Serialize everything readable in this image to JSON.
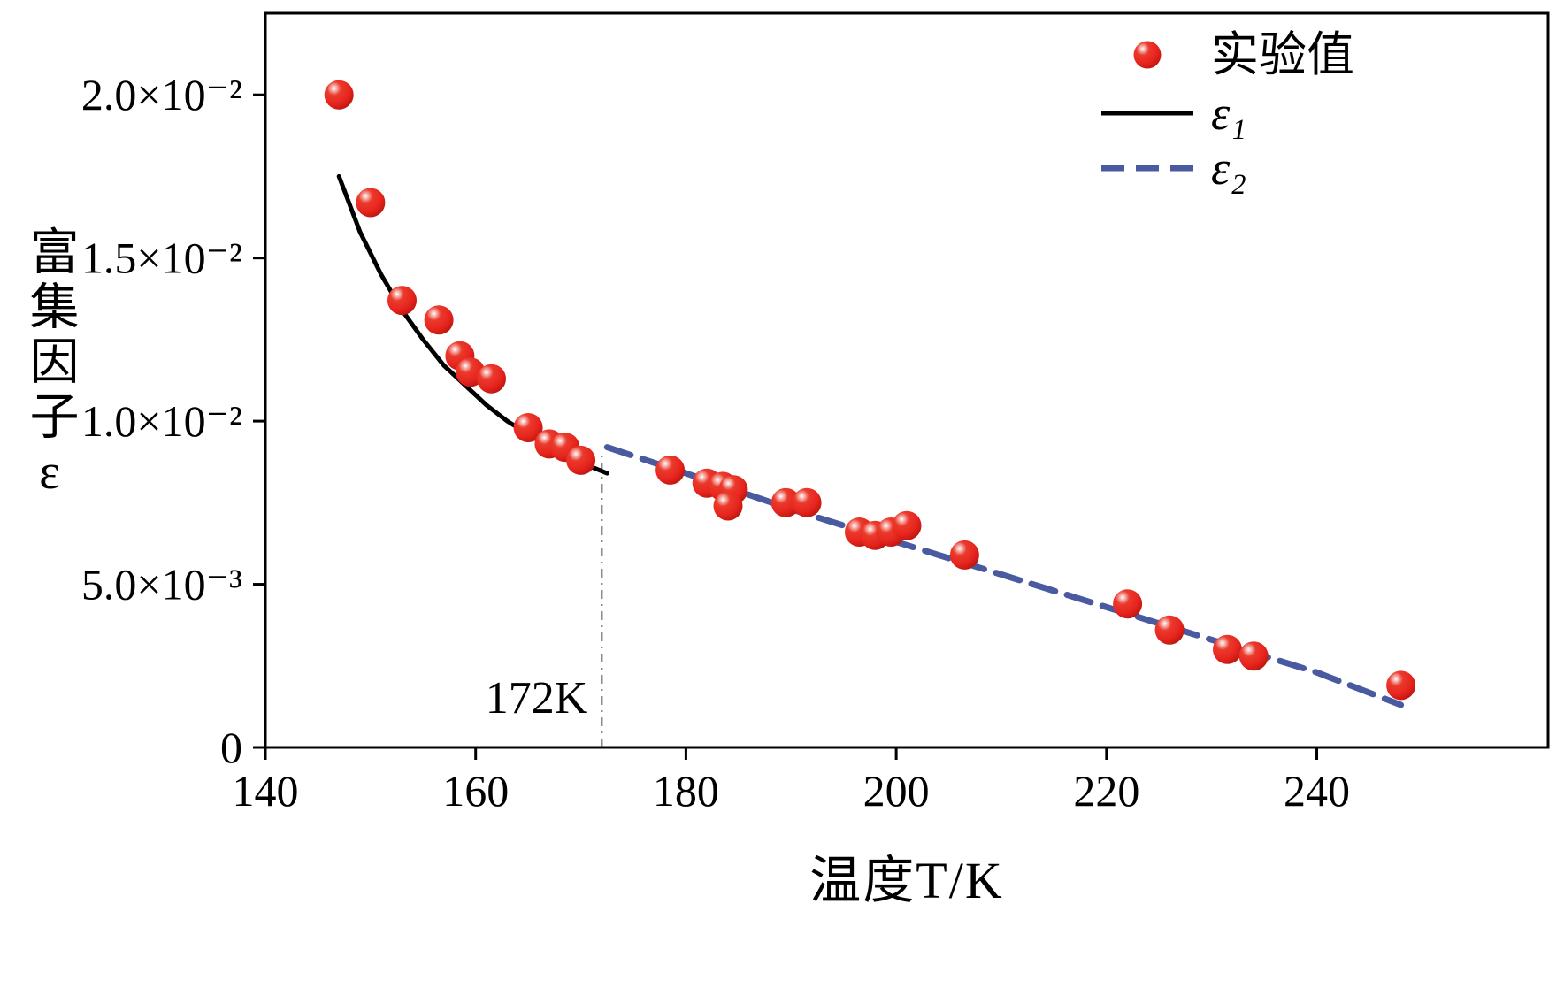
{
  "figure": {
    "background": "#ffffff"
  },
  "chart_data": {
    "type": "scatter",
    "title": "",
    "xlabel": "温度T/K",
    "ylabel": "富集因子ε",
    "xlim": [
      140,
      262
    ],
    "ylim": [
      0,
      0.0225
    ],
    "grid": false,
    "x_ticks": [
      {
        "value": 140,
        "label": "140"
      },
      {
        "value": 160,
        "label": "160"
      },
      {
        "value": 180,
        "label": "180"
      },
      {
        "value": 200,
        "label": "200"
      },
      {
        "value": 220,
        "label": "220"
      },
      {
        "value": 240,
        "label": "240"
      }
    ],
    "y_ticks": [
      {
        "value": 0,
        "label": "0"
      },
      {
        "value": 0.005,
        "label": "5.0×10⁻³"
      },
      {
        "value": 0.01,
        "label": "1.0×10⁻²"
      },
      {
        "value": 0.015,
        "label": "1.5×10⁻²"
      },
      {
        "value": 0.02,
        "label": "2.0×10⁻²"
      }
    ],
    "series": [
      {
        "name": "实验值",
        "type": "scatter",
        "marker": "sphere",
        "color": "#e8251f",
        "marker_highlight": "#ffffff",
        "marker_mid": "#ea3a2c",
        "marker_edge": "#b01208",
        "points": [
          [
            147,
            0.02
          ],
          [
            150,
            0.0167
          ],
          [
            153,
            0.0137
          ],
          [
            156.5,
            0.0131
          ],
          [
            158.5,
            0.012
          ],
          [
            159.5,
            0.0115
          ],
          [
            161.5,
            0.0113
          ],
          [
            165,
            0.0098
          ],
          [
            167,
            0.0093
          ],
          [
            168.5,
            0.0092
          ],
          [
            170,
            0.0088
          ],
          [
            178.5,
            0.0085
          ],
          [
            182,
            0.0081
          ],
          [
            183.5,
            0.008
          ],
          [
            184.5,
            0.0079
          ],
          [
            184,
            0.0074
          ],
          [
            189.5,
            0.0075
          ],
          [
            191.5,
            0.0075
          ],
          [
            196.5,
            0.0066
          ],
          [
            198,
            0.0065
          ],
          [
            199.5,
            0.0066
          ],
          [
            201,
            0.0068
          ],
          [
            206.5,
            0.0059
          ],
          [
            222,
            0.0044
          ],
          [
            226,
            0.0036
          ],
          [
            231.5,
            0.003
          ],
          [
            234,
            0.0028
          ],
          [
            248,
            0.0019
          ]
        ]
      },
      {
        "name": "ε₁",
        "type": "line",
        "style": "solid",
        "color": "#000000",
        "points": [
          [
            147,
            0.0175
          ],
          [
            149,
            0.0158
          ],
          [
            151,
            0.0145
          ],
          [
            153,
            0.0134
          ],
          [
            155,
            0.0125
          ],
          [
            157,
            0.0117
          ],
          [
            159,
            0.0111
          ],
          [
            161,
            0.0105
          ],
          [
            163,
            0.01
          ],
          [
            165,
            0.0096
          ],
          [
            167,
            0.0092
          ],
          [
            169,
            0.0089
          ],
          [
            171,
            0.0086
          ],
          [
            172.5,
            0.0084
          ]
        ]
      },
      {
        "name": "ε₂",
        "type": "line",
        "style": "dashed",
        "color": "#4a5aa0",
        "points": [
          [
            172.5,
            0.0092
          ],
          [
            180,
            0.0084
          ],
          [
            190,
            0.0073
          ],
          [
            200,
            0.0063
          ],
          [
            210,
            0.0053
          ],
          [
            220,
            0.0043
          ],
          [
            230,
            0.0033
          ],
          [
            240,
            0.0023
          ],
          [
            248,
            0.0013
          ]
        ]
      }
    ],
    "annotation": {
      "label": "172K",
      "x": 172,
      "line_top": 0.009,
      "style": "dash-dot",
      "color": "#555555"
    },
    "legend": {
      "position": "top-right",
      "items": [
        {
          "marker": "sphere",
          "color": "#e8251f",
          "label": "实验值",
          "italic": false
        },
        {
          "marker": "line-solid",
          "color": "#000000",
          "label": "ε₁",
          "italic": true
        },
        {
          "marker": "line-dashed",
          "color": "#4a5aa0",
          "label": "ε₂",
          "italic": true
        }
      ]
    }
  }
}
